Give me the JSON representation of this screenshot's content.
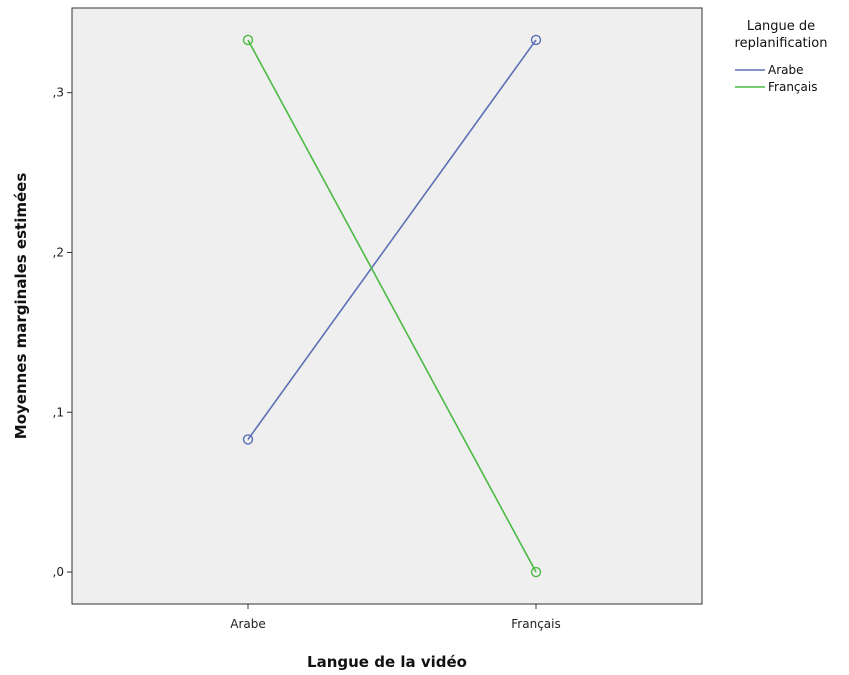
{
  "chart_data": {
    "type": "line",
    "xlabel": "Langue de la vidéo",
    "ylabel": "Moyennes marginales estimées",
    "categories": [
      "Arabe",
      "Français"
    ],
    "ylim": [
      -0.02,
      0.353
    ],
    "yticks": [
      0.0,
      0.1,
      0.2,
      0.3
    ],
    "ytick_labels": [
      ",0",
      ",1",
      ",2",
      ",3"
    ],
    "grid": false,
    "legend": {
      "title_lines": [
        "Langue de",
        "replanification"
      ],
      "position": "top-right outside"
    },
    "series": [
      {
        "name": "Arabe",
        "color": "#5B6FB5",
        "values": [
          0.083,
          0.333
        ]
      },
      {
        "name": "Français",
        "color": "#4CBA45",
        "values": [
          0.333,
          0.0
        ]
      }
    ]
  }
}
